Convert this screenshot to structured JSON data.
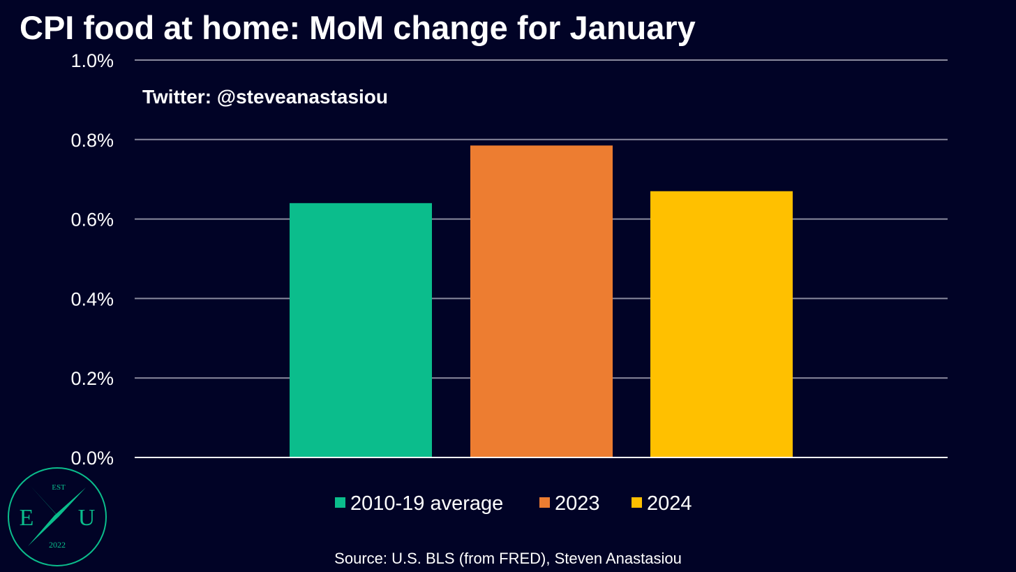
{
  "chart_data": {
    "type": "bar",
    "title": "CPI food at home: MoM change for January",
    "annotation": "Twitter: @steveanastasiou",
    "categories": [
      "2010-19 average",
      "2023",
      "2024"
    ],
    "values": [
      0.64,
      0.785,
      0.67
    ],
    "colors": [
      "#0bbd8c",
      "#ed7d31",
      "#ffc000"
    ],
    "ylim": [
      0,
      1.0
    ],
    "yticks": [
      0.0,
      0.2,
      0.4,
      0.6,
      0.8,
      1.0
    ],
    "ytick_labels": [
      "0.0%",
      "0.2%",
      "0.4%",
      "0.6%",
      "0.8%",
      "1.0%"
    ],
    "grid": true,
    "legend_position": "bottom",
    "source": "Source: U.S. BLS (from FRED), Steven Anastasiou"
  },
  "logo": {
    "top": "EST",
    "left": "E",
    "right": "U",
    "bottom": "2022",
    "color": "#0bbd8c"
  },
  "colors": {
    "background": "#010326",
    "grid": "#8a8a9e",
    "axis": "#ffffff",
    "text": "#ffffff"
  }
}
